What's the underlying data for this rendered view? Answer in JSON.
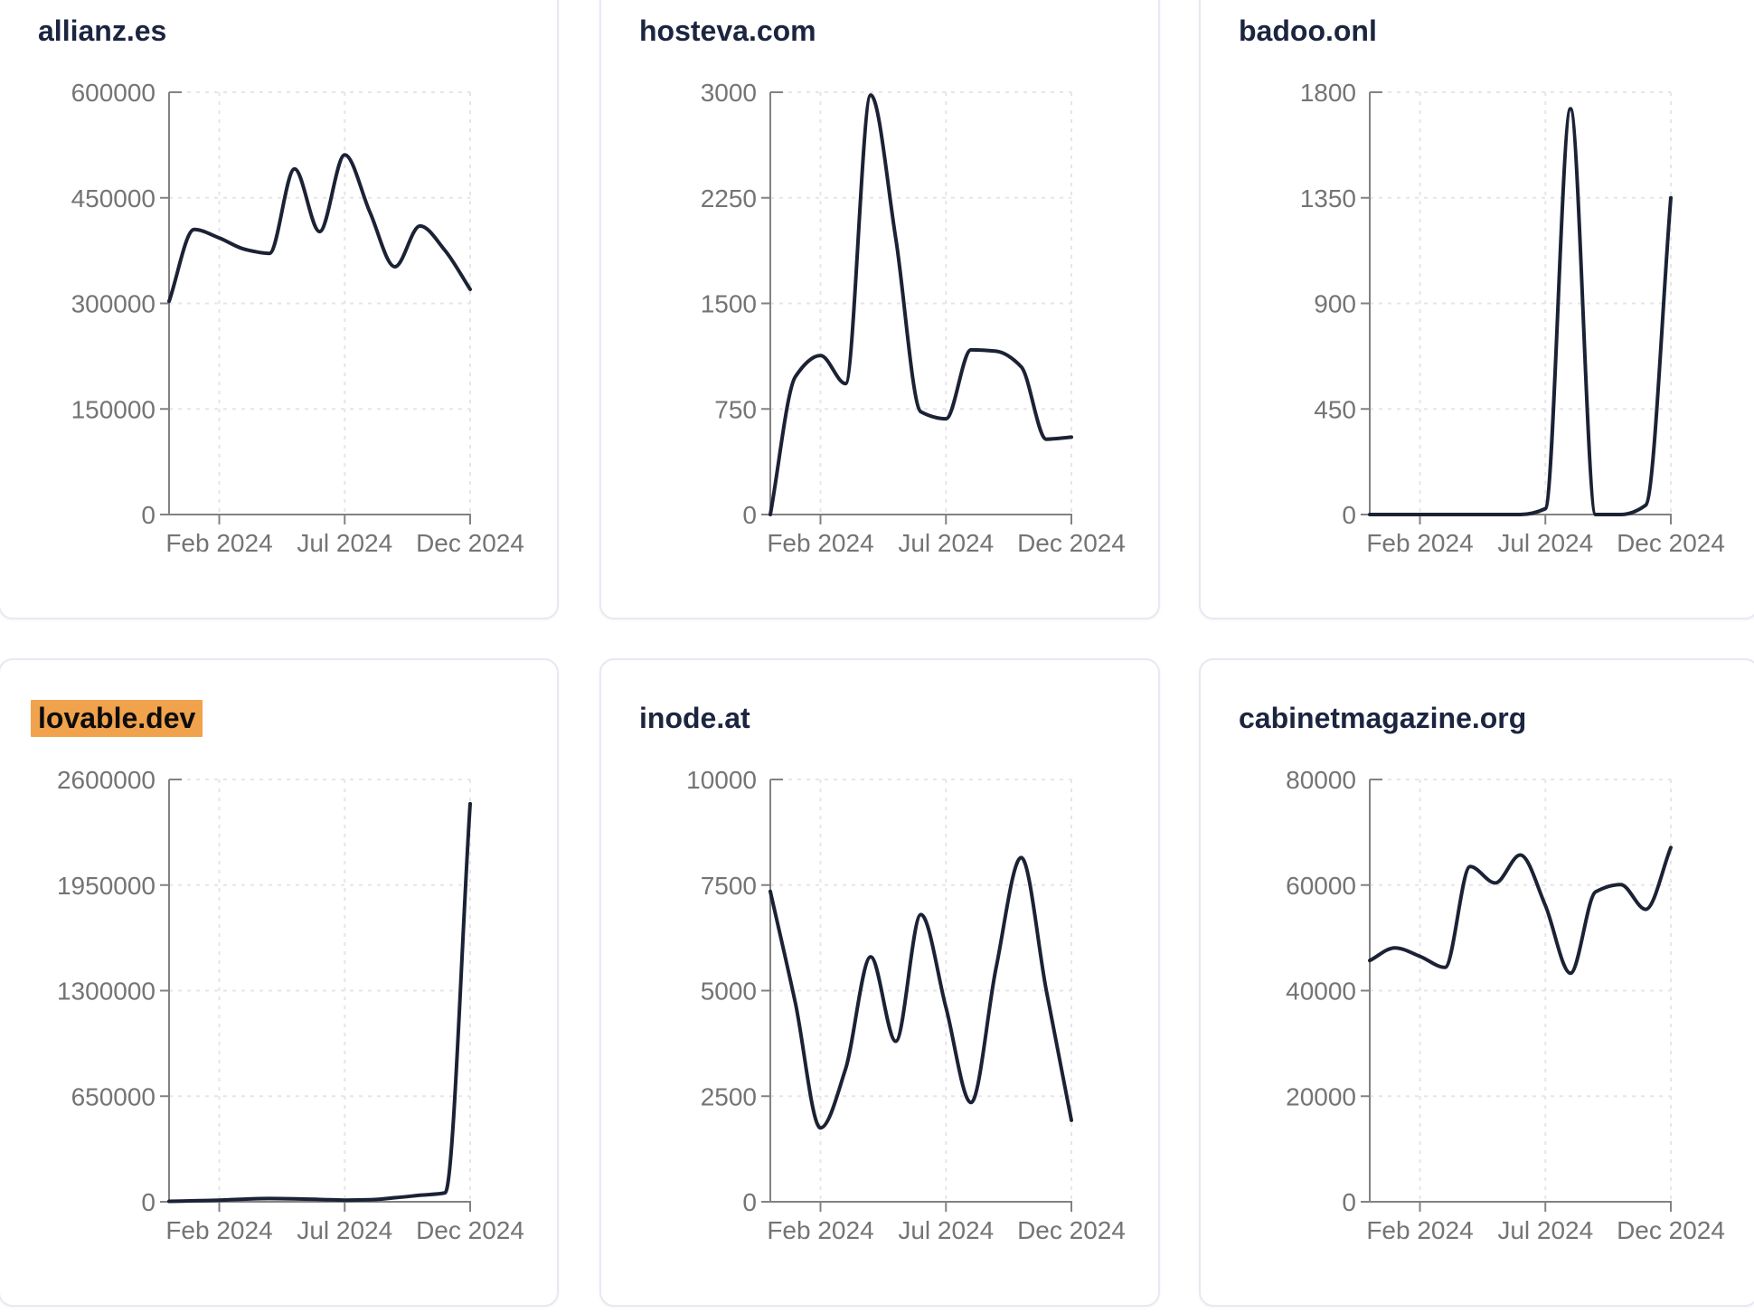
{
  "style": {
    "line_color": "#1c2235",
    "title_color": "#1c2540",
    "tick_label_color": "#747477",
    "axis_color": "#828282",
    "grid_color": "#e5e5ea",
    "highlight_color": "#f0a24c",
    "card_border": "#e7e9f2",
    "card_bg": "#ffffff",
    "page_bg": "#ffffff"
  },
  "x_axis": {
    "months": [
      "Dec 2023",
      "Jan 2024",
      "Feb 2024",
      "Mar 2024",
      "Apr 2024",
      "May 2024",
      "Jun 2024",
      "Jul 2024",
      "Aug 2024",
      "Sep 2024",
      "Oct 2024",
      "Nov 2024",
      "Dec 2024"
    ],
    "tick_labels": [
      "Feb 2024",
      "Jul 2024",
      "Dec 2024"
    ],
    "tick_month_index": [
      2,
      7,
      12
    ]
  },
  "chart_data": [
    {
      "type": "line",
      "title": "allianz.es",
      "highlighted": false,
      "ylim": [
        0,
        600000
      ],
      "y_ticks": [
        0,
        150000,
        300000,
        450000,
        600000
      ],
      "x": [
        "Dec 2023",
        "Jan 2024",
        "Feb 2024",
        "Mar 2024",
        "Apr 2024",
        "May 2024",
        "Jun 2024",
        "Jul 2024",
        "Aug 2024",
        "Sep 2024",
        "Oct 2024",
        "Nov 2024",
        "Dec 2024"
      ],
      "values": [
        303000,
        405000,
        393000,
        377000,
        371000,
        491000,
        402000,
        511000,
        430000,
        352000,
        410000,
        375000,
        320000
      ]
    },
    {
      "type": "line",
      "title": "hosteva.com",
      "highlighted": false,
      "ylim": [
        0,
        3000
      ],
      "y_ticks": [
        0,
        750,
        1500,
        2250,
        3000
      ],
      "x": [
        "Dec 2023",
        "Jan 2024",
        "Feb 2024",
        "Mar 2024",
        "Apr 2024",
        "May 2024",
        "Jun 2024",
        "Jul 2024",
        "Aug 2024",
        "Sep 2024",
        "Oct 2024",
        "Nov 2024",
        "Dec 2024"
      ],
      "values": [
        0,
        980,
        1130,
        930,
        2980,
        1960,
        730,
        680,
        1170,
        1160,
        1050,
        535,
        550
      ]
    },
    {
      "type": "line",
      "title": "badoo.onl",
      "highlighted": false,
      "ylim": [
        0,
        1800
      ],
      "y_ticks": [
        0,
        450,
        900,
        1350,
        1800
      ],
      "x": [
        "Dec 2023",
        "Jan 2024",
        "Feb 2024",
        "Mar 2024",
        "Apr 2024",
        "May 2024",
        "Jun 2024",
        "Jul 2024",
        "Aug 2024",
        "Sep 2024",
        "Oct 2024",
        "Nov 2024",
        "Dec 2024"
      ],
      "values": [
        0,
        0,
        0,
        0,
        0,
        0,
        0,
        25,
        1730,
        0,
        0,
        40,
        1350
      ]
    },
    {
      "type": "line",
      "title": "lovable.dev",
      "highlighted": true,
      "ylim": [
        0,
        2600000
      ],
      "y_ticks": [
        0,
        650000,
        1300000,
        1950000,
        2600000
      ],
      "x": [
        "Dec 2023",
        "Jan 2024",
        "Feb 2024",
        "Mar 2024",
        "Apr 2024",
        "May 2024",
        "Jun 2024",
        "Jul 2024",
        "Aug 2024",
        "Sep 2024",
        "Oct 2024",
        "Nov 2024",
        "Dec 2024"
      ],
      "values": [
        3000,
        6000,
        10000,
        16000,
        20000,
        18000,
        14000,
        10000,
        12000,
        25000,
        40000,
        55000,
        2450000
      ]
    },
    {
      "type": "line",
      "title": "inode.at",
      "highlighted": false,
      "ylim": [
        0,
        10000
      ],
      "y_ticks": [
        0,
        2500,
        5000,
        7500,
        10000
      ],
      "x": [
        "Dec 2023",
        "Jan 2024",
        "Feb 2024",
        "Mar 2024",
        "Apr 2024",
        "May 2024",
        "Jun 2024",
        "Jul 2024",
        "Aug 2024",
        "Sep 2024",
        "Oct 2024",
        "Nov 2024",
        "Dec 2024"
      ],
      "values": [
        7350,
        4700,
        1750,
        3150,
        5800,
        3800,
        6800,
        4600,
        2350,
        5550,
        8150,
        5000,
        1930
      ]
    },
    {
      "type": "line",
      "title": "cabinetmagazine.org",
      "highlighted": false,
      "ylim": [
        0,
        80000
      ],
      "y_ticks": [
        0,
        20000,
        40000,
        60000,
        80000
      ],
      "x": [
        "Dec 2023",
        "Jan 2024",
        "Feb 2024",
        "Mar 2024",
        "Apr 2024",
        "May 2024",
        "Jun 2024",
        "Jul 2024",
        "Aug 2024",
        "Sep 2024",
        "Oct 2024",
        "Nov 2024",
        "Dec 2024"
      ],
      "values": [
        45700,
        48100,
        46500,
        44400,
        63500,
        60400,
        65700,
        56100,
        43300,
        58700,
        60100,
        55400,
        67100
      ]
    }
  ]
}
